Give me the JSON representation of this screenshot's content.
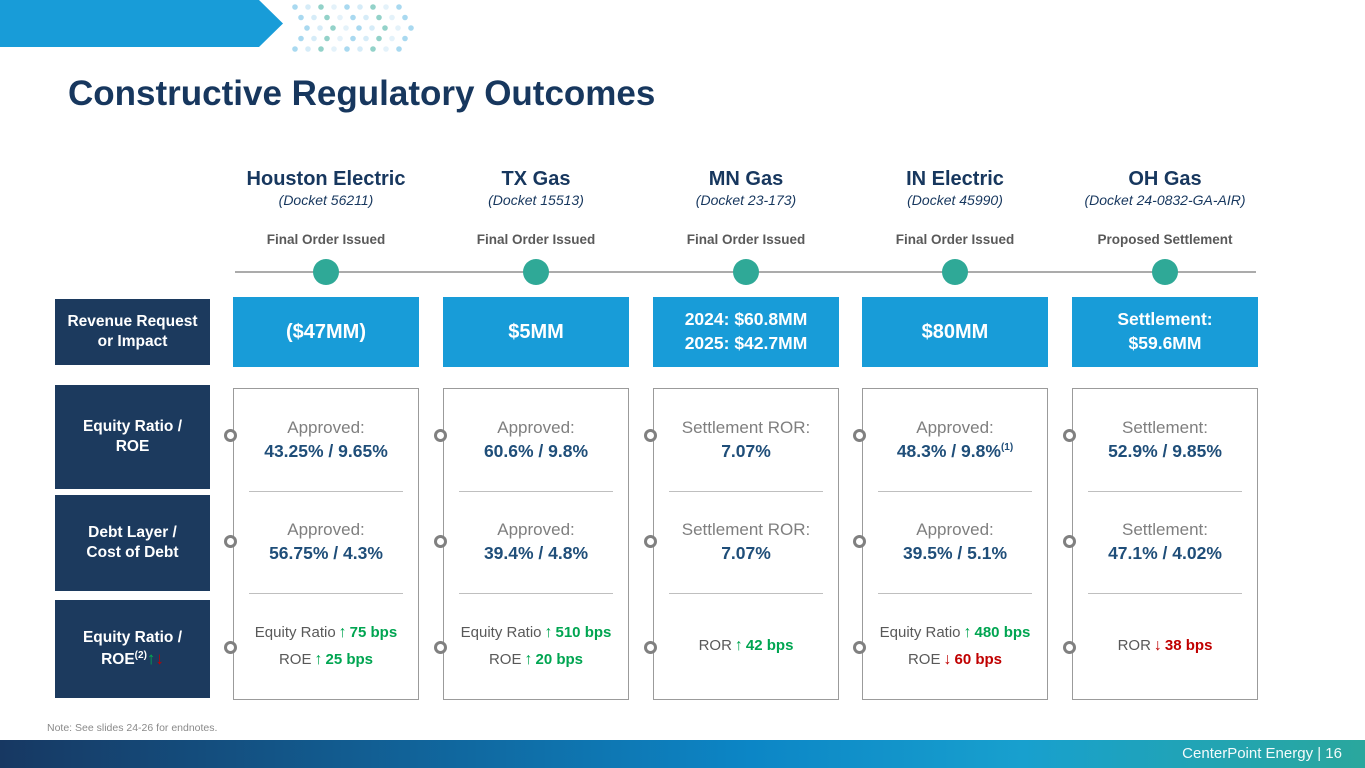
{
  "slide": {
    "title": "Constructive Regulatory Outcomes",
    "note": "Note: See slides 24-26 for endnotes.",
    "footer_text": "CenterPoint Energy | 16"
  },
  "colors": {
    "accent_blue": "#189CD8",
    "navy": "#1C3A5E",
    "teal": "#2FA997",
    "green": "#00A551",
    "red": "#C00000"
  },
  "row_labels": {
    "revenue": [
      "Revenue Request",
      "or Impact"
    ],
    "equity": [
      "Equity Ratio /",
      "ROE"
    ],
    "debt": [
      "Debt Layer /",
      "Cost of Debt"
    ],
    "equity_change": [
      "Equity Ratio /",
      "ROE"
    ],
    "equity_change_sup": "(2)"
  },
  "columns": [
    {
      "name": "Houston Electric",
      "docket": "(Docket 56211)",
      "status": "Final Order Issued",
      "revenue": [
        "($47MM)"
      ],
      "equity": {
        "label": "Approved:",
        "value": "43.25% / 9.65%"
      },
      "debt": {
        "label": "Approved:",
        "value": "56.75% / 4.3%"
      },
      "changes": [
        {
          "metric": "Equity Ratio",
          "dir": "up",
          "value": "75 bps"
        },
        {
          "metric": "ROE",
          "dir": "up",
          "value": "25 bps"
        }
      ]
    },
    {
      "name": "TX Gas",
      "docket": "(Docket 15513)",
      "status": "Final Order Issued",
      "revenue": [
        "$5MM"
      ],
      "equity": {
        "label": "Approved:",
        "value": "60.6% / 9.8%"
      },
      "debt": {
        "label": "Approved:",
        "value": "39.4% / 4.8%"
      },
      "changes": [
        {
          "metric": "Equity Ratio",
          "dir": "up",
          "value": "510 bps"
        },
        {
          "metric": "ROE",
          "dir": "up",
          "value": "20 bps"
        }
      ]
    },
    {
      "name": "MN Gas",
      "docket": "(Docket 23-173)",
      "status": "Final Order Issued",
      "revenue": [
        "2024: $60.8MM",
        "2025: $42.7MM"
      ],
      "equity": {
        "label": "Settlement ROR:",
        "value": "7.07%"
      },
      "debt": {
        "label": "Settlement ROR:",
        "value": "7.07%"
      },
      "changes": [
        {
          "metric": "ROR",
          "dir": "up",
          "value": "42 bps"
        }
      ]
    },
    {
      "name": "IN Electric",
      "docket": "(Docket 45990)",
      "status": "Final Order Issued",
      "revenue": [
        "$80MM"
      ],
      "equity": {
        "label": "Approved:",
        "value": "48.3% / 9.8%",
        "sup": "(1)"
      },
      "debt": {
        "label": "Approved:",
        "value": "39.5% / 5.1%"
      },
      "changes": [
        {
          "metric": "Equity Ratio",
          "dir": "up",
          "value": "480 bps"
        },
        {
          "metric": "ROE",
          "dir": "down",
          "value": "60 bps"
        }
      ]
    },
    {
      "name": "OH Gas",
      "docket": "(Docket 24-0832-GA-AIR)",
      "status": "Proposed Settlement",
      "revenue": [
        "Settlement:",
        "$59.6MM"
      ],
      "equity": {
        "label": "Settlement:",
        "value": "52.9% / 9.85%"
      },
      "debt": {
        "label": "Settlement:",
        "value": "47.1% / 4.02%"
      },
      "changes": [
        {
          "metric": "ROR",
          "dir": "down",
          "value": "38 bps"
        }
      ]
    }
  ]
}
